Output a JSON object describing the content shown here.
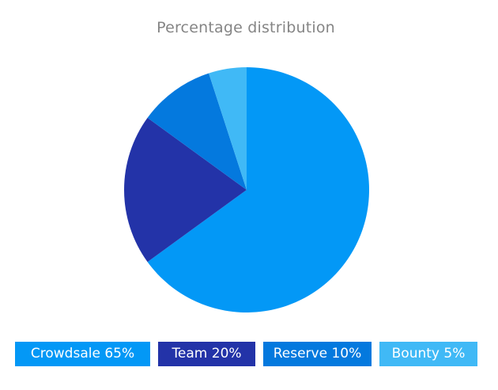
{
  "chart_data": {
    "type": "pie",
    "title": "Percentage distribution",
    "slices": [
      {
        "label": "Crowdsale",
        "value": 65,
        "color": "#0398f6",
        "legend": "Crowdsale 65%"
      },
      {
        "label": "Team",
        "value": 20,
        "color": "#2333a8",
        "legend": "Team 20%"
      },
      {
        "label": "Reserve",
        "value": 10,
        "color": "#0479de",
        "legend": "Reserve 10%"
      },
      {
        "label": "Bounty",
        "value": 5,
        "color": "#40b9f6",
        "legend": "Bounty 5%"
      }
    ],
    "legend_position": "bottom"
  }
}
